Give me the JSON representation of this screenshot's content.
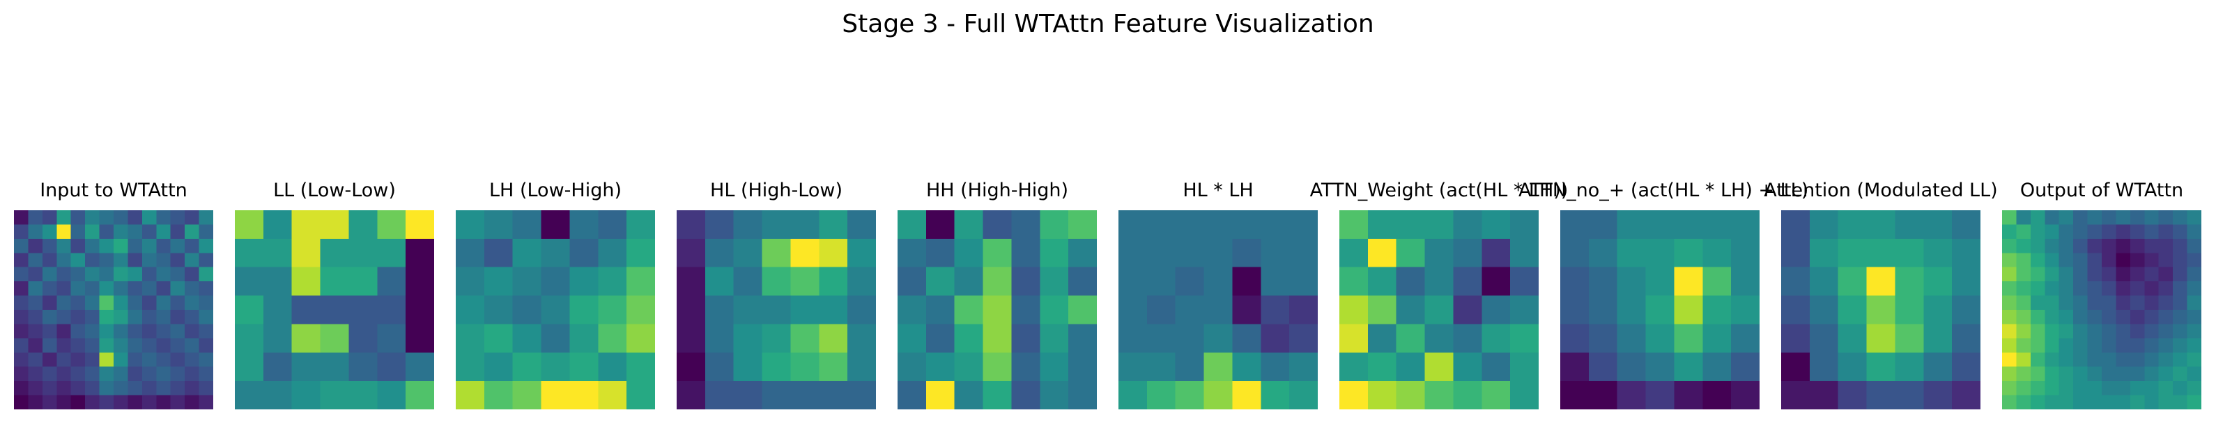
{
  "chart_data": {
    "type": "heatmap",
    "title": "Stage 3 - Full WTAttn Feature Visualization",
    "colormap": "viridis",
    "axes_visible": false,
    "panels": [
      {
        "title": "Input to WTAttn",
        "rows": 14,
        "cols": 14,
        "values": [
          [
            0.15,
            0.35,
            0.3,
            0.6,
            0.35,
            0.5,
            0.45,
            0.4,
            0.3,
            0.55,
            0.4,
            0.35,
            0.3,
            0.5
          ],
          [
            0.3,
            0.45,
            0.55,
            1.0,
            0.4,
            0.6,
            0.35,
            0.5,
            0.45,
            0.35,
            0.55,
            0.3,
            0.6,
            0.4
          ],
          [
            0.4,
            0.25,
            0.35,
            0.5,
            0.3,
            0.45,
            0.55,
            0.65,
            0.4,
            0.5,
            0.35,
            0.45,
            0.35,
            0.55
          ],
          [
            0.25,
            0.4,
            0.3,
            0.45,
            0.55,
            0.35,
            0.4,
            0.5,
            0.3,
            0.45,
            0.4,
            0.3,
            0.5,
            0.35
          ],
          [
            0.35,
            0.3,
            0.45,
            0.35,
            0.4,
            0.5,
            0.45,
            0.6,
            0.55,
            0.35,
            0.45,
            0.4,
            0.3,
            0.6
          ],
          [
            0.2,
            0.45,
            0.35,
            0.3,
            0.45,
            0.4,
            0.55,
            0.45,
            0.35,
            0.4,
            0.3,
            0.5,
            0.4,
            0.35
          ],
          [
            0.3,
            0.35,
            0.25,
            0.4,
            0.35,
            0.45,
            0.75,
            0.55,
            0.4,
            0.3,
            0.45,
            0.35,
            0.45,
            0.4
          ],
          [
            0.25,
            0.3,
            0.4,
            0.35,
            0.3,
            0.35,
            0.65,
            0.6,
            0.45,
            0.35,
            0.4,
            0.3,
            0.35,
            0.45
          ],
          [
            0.2,
            0.25,
            0.3,
            0.2,
            0.35,
            0.4,
            0.55,
            0.45,
            0.35,
            0.3,
            0.35,
            0.4,
            0.3,
            0.35
          ],
          [
            0.3,
            0.2,
            0.35,
            0.25,
            0.3,
            0.35,
            0.6,
            0.5,
            0.4,
            0.35,
            0.3,
            0.35,
            0.4,
            0.3
          ],
          [
            0.25,
            0.3,
            0.2,
            0.3,
            0.25,
            0.3,
            0.9,
            0.55,
            0.35,
            0.4,
            0.35,
            0.3,
            0.35,
            0.4
          ],
          [
            0.2,
            0.25,
            0.3,
            0.25,
            0.3,
            0.35,
            0.5,
            0.45,
            0.3,
            0.35,
            0.4,
            0.35,
            0.3,
            0.35
          ],
          [
            0.15,
            0.2,
            0.25,
            0.2,
            0.25,
            0.3,
            0.45,
            0.4,
            0.35,
            0.3,
            0.35,
            0.3,
            0.25,
            0.3
          ],
          [
            0.1,
            0.15,
            0.2,
            0.15,
            0.1,
            0.2,
            0.25,
            0.2,
            0.15,
            0.2,
            0.15,
            0.2,
            0.15,
            0.2
          ]
        ]
      },
      {
        "title": "LL (Low-Low)",
        "rows": 7,
        "cols": 7,
        "values": [
          [
            0.8,
            0.5,
            0.9,
            0.9,
            0.55,
            0.75,
            0.95
          ],
          [
            0.55,
            0.55,
            0.9,
            0.55,
            0.55,
            0.55,
            0.05
          ],
          [
            0.45,
            0.45,
            0.85,
            0.6,
            0.6,
            0.35,
            0.05
          ],
          [
            0.6,
            0.45,
            0.3,
            0.3,
            0.3,
            0.3,
            0.05
          ],
          [
            0.55,
            0.45,
            0.8,
            0.75,
            0.3,
            0.35,
            0.05
          ],
          [
            0.55,
            0.35,
            0.45,
            0.45,
            0.35,
            0.3,
            0.4
          ],
          [
            0.45,
            0.45,
            0.5,
            0.55,
            0.55,
            0.5,
            0.7
          ]
        ]
      },
      {
        "title": "LH (Low-High)",
        "rows": 7,
        "cols": 7,
        "values": [
          [
            0.5,
            0.45,
            0.4,
            0.05,
            0.4,
            0.35,
            0.55
          ],
          [
            0.4,
            0.3,
            0.5,
            0.45,
            0.35,
            0.45,
            0.6
          ],
          [
            0.45,
            0.5,
            0.45,
            0.4,
            0.5,
            0.55,
            0.7
          ],
          [
            0.5,
            0.45,
            0.4,
            0.45,
            0.6,
            0.65,
            0.75
          ],
          [
            0.55,
            0.6,
            0.5,
            0.4,
            0.55,
            0.7,
            0.8
          ],
          [
            0.55,
            0.5,
            0.6,
            0.55,
            0.6,
            0.5,
            0.6
          ],
          [
            0.85,
            0.7,
            0.75,
            0.95,
            0.95,
            0.9,
            0.6
          ]
        ]
      },
      {
        "title": "HL (High-Low)",
        "rows": 7,
        "cols": 7,
        "values": [
          [
            0.2,
            0.3,
            0.4,
            0.45,
            0.45,
            0.55,
            0.4
          ],
          [
            0.15,
            0.4,
            0.45,
            0.75,
            0.95,
            0.9,
            0.5
          ],
          [
            0.1,
            0.5,
            0.4,
            0.65,
            0.7,
            0.6,
            0.45
          ],
          [
            0.1,
            0.4,
            0.45,
            0.45,
            0.5,
            0.5,
            0.4
          ],
          [
            0.1,
            0.4,
            0.5,
            0.55,
            0.7,
            0.8,
            0.45
          ],
          [
            0.05,
            0.35,
            0.5,
            0.6,
            0.65,
            0.7,
            0.45
          ],
          [
            0.1,
            0.3,
            0.3,
            0.35,
            0.35,
            0.35,
            0.35
          ]
        ]
      },
      {
        "title": "HH (High-High)",
        "rows": 7,
        "cols": 7,
        "values": [
          [
            0.55,
            0.05,
            0.55,
            0.3,
            0.35,
            0.65,
            0.7
          ],
          [
            0.4,
            0.35,
            0.5,
            0.7,
            0.35,
            0.6,
            0.45
          ],
          [
            0.35,
            0.55,
            0.45,
            0.75,
            0.3,
            0.55,
            0.35
          ],
          [
            0.45,
            0.4,
            0.7,
            0.8,
            0.35,
            0.6,
            0.7
          ],
          [
            0.5,
            0.35,
            0.6,
            0.8,
            0.3,
            0.55,
            0.4
          ],
          [
            0.45,
            0.5,
            0.55,
            0.75,
            0.35,
            0.5,
            0.4
          ],
          [
            0.35,
            0.95,
            0.45,
            0.6,
            0.3,
            0.45,
            0.4
          ]
        ]
      },
      {
        "title": "HL * LH",
        "rows": 7,
        "cols": 7,
        "values": [
          [
            0.4,
            0.4,
            0.4,
            0.4,
            0.4,
            0.4,
            0.4
          ],
          [
            0.4,
            0.4,
            0.4,
            0.4,
            0.35,
            0.4,
            0.4
          ],
          [
            0.4,
            0.4,
            0.35,
            0.4,
            0.05,
            0.4,
            0.4
          ],
          [
            0.4,
            0.35,
            0.4,
            0.4,
            0.1,
            0.25,
            0.2
          ],
          [
            0.4,
            0.4,
            0.4,
            0.45,
            0.35,
            0.2,
            0.25
          ],
          [
            0.45,
            0.45,
            0.4,
            0.75,
            0.5,
            0.4,
            0.45
          ],
          [
            0.55,
            0.65,
            0.7,
            0.8,
            0.95,
            0.6,
            0.55
          ]
        ]
      },
      {
        "title": "ATTN_Weight (act(HL * LH))",
        "rows": 7,
        "cols": 7,
        "values": [
          [
            0.7,
            0.55,
            0.55,
            0.55,
            0.45,
            0.5,
            0.45
          ],
          [
            0.55,
            0.95,
            0.65,
            0.45,
            0.4,
            0.2,
            0.45
          ],
          [
            0.65,
            0.55,
            0.35,
            0.45,
            0.3,
            0.05,
            0.3
          ],
          [
            0.85,
            0.75,
            0.45,
            0.55,
            0.2,
            0.4,
            0.45
          ],
          [
            0.9,
            0.45,
            0.65,
            0.45,
            0.4,
            0.55,
            0.6
          ],
          [
            0.55,
            0.6,
            0.5,
            0.85,
            0.5,
            0.4,
            0.55
          ],
          [
            0.95,
            0.85,
            0.8,
            0.7,
            0.65,
            0.7,
            0.55
          ]
        ]
      },
      {
        "title": "ATTN_no_+ (act(HL * LH) + LL)",
        "rows": 7,
        "cols": 7,
        "values": [
          [
            0.4,
            0.4,
            0.5,
            0.5,
            0.5,
            0.5,
            0.5
          ],
          [
            0.4,
            0.45,
            0.55,
            0.55,
            0.6,
            0.55,
            0.5
          ],
          [
            0.35,
            0.4,
            0.5,
            0.55,
            0.95,
            0.7,
            0.5
          ],
          [
            0.35,
            0.4,
            0.5,
            0.6,
            0.85,
            0.6,
            0.55
          ],
          [
            0.3,
            0.35,
            0.45,
            0.55,
            0.7,
            0.55,
            0.45
          ],
          [
            0.15,
            0.3,
            0.4,
            0.45,
            0.55,
            0.45,
            0.35
          ],
          [
            0.1,
            0.1,
            0.2,
            0.25,
            0.15,
            0.1,
            0.15
          ]
        ]
      },
      {
        "title": "Attention (Modulated LL)",
        "rows": 7,
        "cols": 7,
        "values": [
          [
            0.3,
            0.45,
            0.5,
            0.5,
            0.45,
            0.45,
            0.4
          ],
          [
            0.3,
            0.5,
            0.55,
            0.55,
            0.55,
            0.5,
            0.45
          ],
          [
            0.35,
            0.45,
            0.6,
            0.85,
            0.6,
            0.55,
            0.45
          ],
          [
            0.3,
            0.4,
            0.55,
            0.7,
            0.6,
            0.5,
            0.4
          ],
          [
            0.25,
            0.35,
            0.5,
            0.75,
            0.65,
            0.5,
            0.35
          ],
          [
            0.1,
            0.35,
            0.45,
            0.55,
            0.5,
            0.4,
            0.3
          ],
          [
            0.15,
            0.15,
            0.25,
            0.3,
            0.3,
            0.25,
            0.2
          ]
        ]
      },
      {
        "title": "Output of WTAttn",
        "rows": 14,
        "cols": 14,
        "values": [
          [
            0.7,
            0.45,
            0.55,
            0.4,
            0.45,
            0.35,
            0.4,
            0.35,
            0.4,
            0.35,
            0.4,
            0.35,
            0.4,
            0.45
          ],
          [
            0.6,
            0.65,
            0.55,
            0.5,
            0.4,
            0.35,
            0.3,
            0.25,
            0.2,
            0.25,
            0.3,
            0.25,
            0.3,
            0.4
          ],
          [
            0.65,
            0.6,
            0.55,
            0.45,
            0.4,
            0.3,
            0.2,
            0.15,
            0.1,
            0.15,
            0.2,
            0.2,
            0.25,
            0.35
          ],
          [
            0.75,
            0.7,
            0.6,
            0.5,
            0.4,
            0.35,
            0.25,
            0.15,
            0.05,
            0.1,
            0.15,
            0.2,
            0.25,
            0.3
          ],
          [
            0.8,
            0.7,
            0.65,
            0.55,
            0.45,
            0.35,
            0.25,
            0.2,
            0.1,
            0.15,
            0.2,
            0.15,
            0.25,
            0.35
          ],
          [
            0.7,
            0.65,
            0.6,
            0.5,
            0.45,
            0.35,
            0.3,
            0.25,
            0.15,
            0.2,
            0.15,
            0.2,
            0.3,
            0.4
          ],
          [
            0.75,
            0.7,
            0.55,
            0.55,
            0.45,
            0.4,
            0.3,
            0.3,
            0.2,
            0.25,
            0.2,
            0.25,
            0.3,
            0.45
          ],
          [
            0.8,
            0.75,
            0.65,
            0.55,
            0.5,
            0.4,
            0.35,
            0.3,
            0.25,
            0.2,
            0.25,
            0.3,
            0.35,
            0.4
          ],
          [
            0.9,
            0.8,
            0.7,
            0.6,
            0.55,
            0.45,
            0.4,
            0.35,
            0.3,
            0.25,
            0.3,
            0.35,
            0.4,
            0.45
          ],
          [
            0.85,
            0.75,
            0.7,
            0.6,
            0.5,
            0.45,
            0.4,
            0.35,
            0.3,
            0.3,
            0.35,
            0.4,
            0.45,
            0.5
          ],
          [
            0.95,
            0.85,
            0.65,
            0.55,
            0.5,
            0.45,
            0.4,
            0.4,
            0.35,
            0.35,
            0.4,
            0.45,
            0.5,
            0.55
          ],
          [
            0.8,
            0.75,
            0.7,
            0.6,
            0.55,
            0.5,
            0.45,
            0.4,
            0.4,
            0.4,
            0.45,
            0.5,
            0.55,
            0.5
          ],
          [
            0.75,
            0.7,
            0.65,
            0.6,
            0.55,
            0.5,
            0.5,
            0.45,
            0.45,
            0.5,
            0.5,
            0.55,
            0.5,
            0.55
          ],
          [
            0.7,
            0.65,
            0.6,
            0.55,
            0.55,
            0.5,
            0.5,
            0.5,
            0.5,
            0.55,
            0.5,
            0.55,
            0.55,
            0.6
          ]
        ]
      }
    ]
  }
}
